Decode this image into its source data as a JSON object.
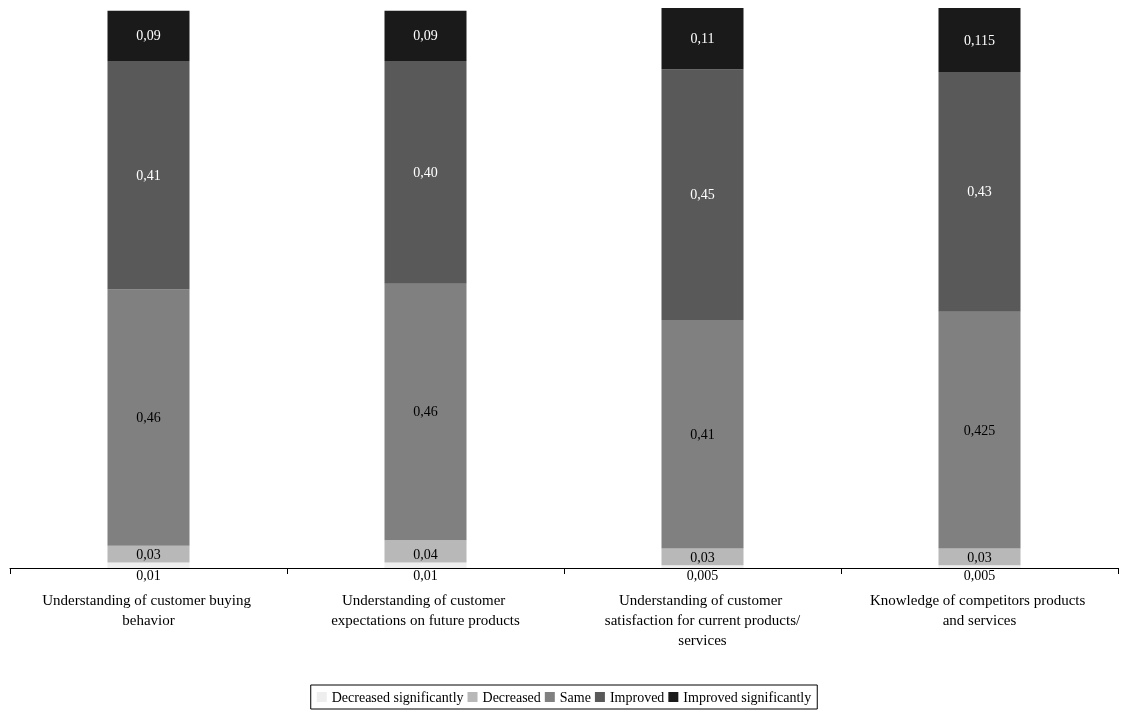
{
  "chart_data": {
    "type": "bar",
    "stacked": true,
    "legend": "bottom",
    "grid": false,
    "categories": [
      "Understanding of customer buying behavior",
      "Understanding of customer expectations on future products",
      "Understanding of customer satisfaction for current products/services",
      "Knowledge of competitors products and services"
    ],
    "series": [
      {
        "name": "Decreased significantly",
        "color": "#eeeeee",
        "values": [
          0.01,
          0.01,
          0.005,
          0.005
        ],
        "value_labels": [
          "0,01",
          "0,01",
          "0,005",
          "0,005"
        ]
      },
      {
        "name": "Decreased",
        "color": "#b8b8b8",
        "values": [
          0.03,
          0.04,
          0.03,
          0.03
        ],
        "value_labels": [
          "0,03",
          "0,04",
          "0,03",
          "0,03"
        ]
      },
      {
        "name": "Same",
        "color": "#808080",
        "values": [
          0.46,
          0.46,
          0.41,
          0.425
        ],
        "value_labels": [
          "0,46",
          "0,46",
          "0,41",
          "0,425"
        ]
      },
      {
        "name": "Improved",
        "color": "#595959",
        "values": [
          0.41,
          0.4,
          0.45,
          0.43
        ],
        "value_labels": [
          "0,41",
          "0,40",
          "0,45",
          "0,43"
        ]
      },
      {
        "name": "Improved significantly",
        "color": "#1a1a1a",
        "values": [
          0.09,
          0.09,
          0.11,
          0.115
        ],
        "value_labels": [
          "0,09",
          "0,09",
          "0,11",
          "0,115"
        ]
      }
    ]
  }
}
